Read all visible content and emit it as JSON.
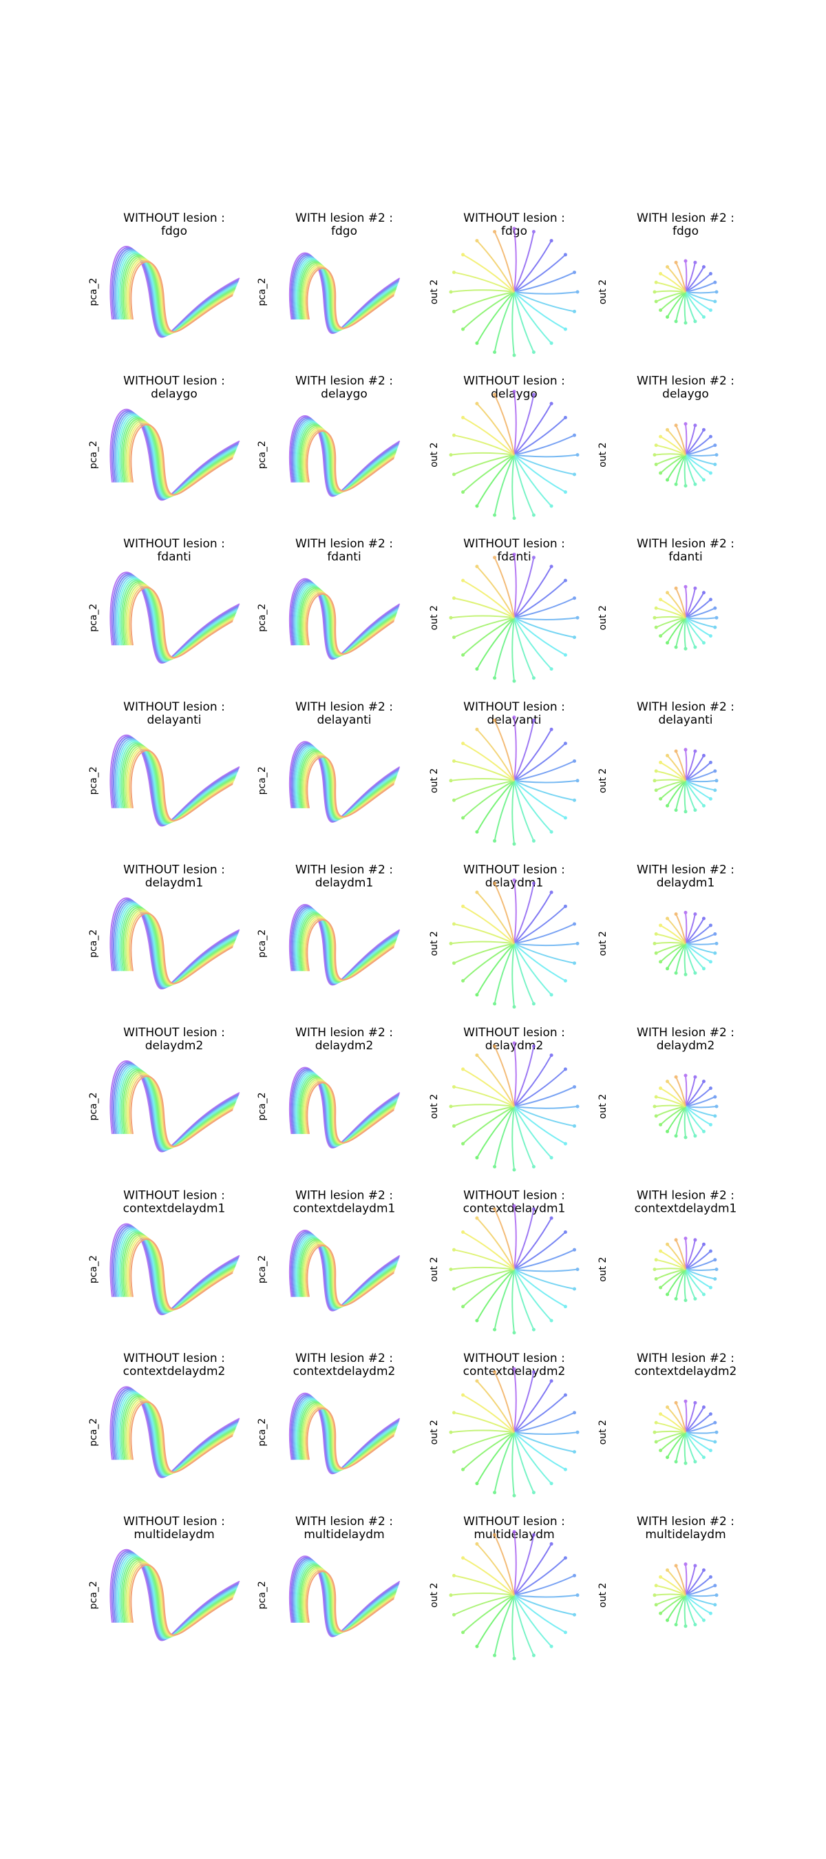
{
  "rows": [
    {
      "panels": [
        {
          "title_line1": "WITHOUT lesion :",
          "title_line2": "fdgo",
          "ylabel": "pca_2"
        },
        {
          "title_line1": "WITH lesion #2 :",
          "title_line2": "fdgo",
          "ylabel": "pca_2"
        },
        {
          "title_line1": "WITHOUT lesion :",
          "title_line2": "fdgo",
          "ylabel": "out 2"
        },
        {
          "title_line1": "WITH lesion #2 :",
          "title_line2": "fdgo",
          "ylabel": "out 2"
        }
      ]
    },
    {
      "panels": [
        {
          "title_line1": "WITHOUT lesion :",
          "title_line2": "delaygo",
          "ylabel": "pca_2"
        },
        {
          "title_line1": "WITH lesion #2 :",
          "title_line2": "delaygo",
          "ylabel": "pca_2"
        },
        {
          "title_line1": "WITHOUT lesion :",
          "title_line2": "delaygo",
          "ylabel": "out 2"
        },
        {
          "title_line1": "WITH lesion #2 :",
          "title_line2": "delaygo",
          "ylabel": "out 2"
        }
      ]
    },
    {
      "panels": [
        {
          "title_line1": "WITHOUT lesion :",
          "title_line2": "fdanti",
          "ylabel": "pca_2"
        },
        {
          "title_line1": "WITH lesion #2 :",
          "title_line2": "fdanti",
          "ylabel": "pca_2"
        },
        {
          "title_line1": "WITHOUT lesion :",
          "title_line2": "fdanti",
          "ylabel": "out 2"
        },
        {
          "title_line1": "WITH lesion #2 :",
          "title_line2": "fdanti",
          "ylabel": "out 2"
        }
      ]
    },
    {
      "panels": [
        {
          "title_line1": "WITHOUT lesion :",
          "title_line2": "delayanti",
          "ylabel": "pca_2"
        },
        {
          "title_line1": "WITH lesion #2 :",
          "title_line2": "delayanti",
          "ylabel": "pca_2"
        },
        {
          "title_line1": "WITHOUT lesion :",
          "title_line2": "delayanti",
          "ylabel": "out 2"
        },
        {
          "title_line1": "WITH lesion #2 :",
          "title_line2": "delayanti",
          "ylabel": "out 2"
        }
      ]
    },
    {
      "panels": [
        {
          "title_line1": "WITHOUT lesion :",
          "title_line2": "delaydm1",
          "ylabel": "pca_2"
        },
        {
          "title_line1": "WITH lesion #2 :",
          "title_line2": "delaydm1",
          "ylabel": "pca_2"
        },
        {
          "title_line1": "WITHOUT lesion :",
          "title_line2": "delaydm1",
          "ylabel": "out 2"
        },
        {
          "title_line1": "WITH lesion #2 :",
          "title_line2": "delaydm1",
          "ylabel": "out 2"
        }
      ]
    },
    {
      "panels": [
        {
          "title_line1": "WITHOUT lesion :",
          "title_line2": "delaydm2",
          "ylabel": "pca_2"
        },
        {
          "title_line1": "WITH lesion #2 :",
          "title_line2": "delaydm2",
          "ylabel": "pca_2"
        },
        {
          "title_line1": "WITHOUT lesion :",
          "title_line2": "delaydm2",
          "ylabel": "out 2"
        },
        {
          "title_line1": "WITH lesion #2 :",
          "title_line2": "delaydm2",
          "ylabel": "out 2"
        }
      ]
    },
    {
      "panels": [
        {
          "title_line1": "WITHOUT lesion :",
          "title_line2": "contextdelaydm1",
          "ylabel": "pca_2"
        },
        {
          "title_line1": "WITH lesion #2 :",
          "title_line2": "contextdelaydm1",
          "ylabel": "pca_2"
        },
        {
          "title_line1": "WITHOUT lesion :",
          "title_line2": "contextdelaydm1",
          "ylabel": "out 2"
        },
        {
          "title_line1": "WITH lesion #2 :",
          "title_line2": "contextdelaydm1",
          "ylabel": "out 2"
        }
      ]
    },
    {
      "panels": [
        {
          "title_line1": "WITHOUT lesion :",
          "title_line2": "contextdelaydm2",
          "ylabel": "pca_2"
        },
        {
          "title_line1": "WITH lesion #2 :",
          "title_line2": "contextdelaydm2",
          "ylabel": "pca_2"
        },
        {
          "title_line1": "WITHOUT lesion :",
          "title_line2": "contextdelaydm2",
          "ylabel": "out 2"
        },
        {
          "title_line1": "WITH lesion #2 :",
          "title_line2": "contextdelaydm2",
          "ylabel": "out 2"
        }
      ]
    },
    {
      "panels": [
        {
          "title_line1": "WITHOUT lesion :",
          "title_line2": "multidelaydm",
          "ylabel": "pca_2"
        },
        {
          "title_line1": "WITH lesion #2 :",
          "title_line2": "multidelaydm",
          "ylabel": "pca_2"
        },
        {
          "title_line1": "WITHOUT lesion :",
          "title_line2": "multidelaydm",
          "ylabel": "out 2"
        },
        {
          "title_line1": "WITH lesion #2 :",
          "title_line2": "multidelaydm",
          "ylabel": "out 2"
        }
      ]
    }
  ]
}
